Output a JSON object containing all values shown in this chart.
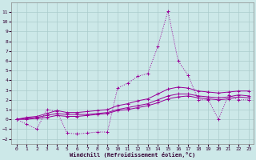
{
  "xlabel": "Windchill (Refroidissement éolien,°C)",
  "background_color": "#cce8e8",
  "grid_color": "#aacccc",
  "line_color": "#990099",
  "xlim": [
    -0.5,
    23.5
  ],
  "ylim": [
    -2.5,
    12
  ],
  "xticks": [
    0,
    1,
    2,
    3,
    4,
    5,
    6,
    7,
    8,
    9,
    10,
    11,
    12,
    13,
    14,
    15,
    16,
    17,
    18,
    19,
    20,
    21,
    22,
    23
  ],
  "yticks": [
    -2,
    -1,
    0,
    1,
    2,
    3,
    4,
    5,
    6,
    7,
    8,
    9,
    10,
    11
  ],
  "series": [
    {
      "x": [
        0,
        1,
        2,
        3,
        4,
        5,
        6,
        7,
        8,
        9,
        10,
        11,
        12,
        13,
        14,
        15,
        16,
        17,
        18,
        19,
        20,
        21,
        22,
        23
      ],
      "y": [
        0,
        -0.5,
        -1.0,
        1.0,
        0.8,
        -1.4,
        -1.5,
        -1.4,
        -1.3,
        -1.3,
        3.2,
        3.7,
        4.4,
        4.7,
        7.5,
        11.1,
        6.0,
        4.5,
        2.0,
        2.0,
        0.0,
        2.5,
        2.0,
        2.0
      ],
      "style": "dotted"
    },
    {
      "x": [
        0,
        1,
        2,
        3,
        4,
        5,
        6,
        7,
        8,
        9,
        10,
        11,
        12,
        13,
        14,
        15,
        16,
        17,
        18,
        19,
        20,
        21,
        22,
        23
      ],
      "y": [
        0,
        0.0,
        0.1,
        0.2,
        0.4,
        0.3,
        0.3,
        0.4,
        0.5,
        0.6,
        0.9,
        1.0,
        1.2,
        1.4,
        1.7,
        2.1,
        2.3,
        2.4,
        2.2,
        2.1,
        2.0,
        2.1,
        2.3,
        2.2
      ],
      "style": "solid"
    },
    {
      "x": [
        0,
        1,
        2,
        3,
        4,
        5,
        6,
        7,
        8,
        9,
        10,
        11,
        12,
        13,
        14,
        15,
        16,
        17,
        18,
        19,
        20,
        21,
        22,
        23
      ],
      "y": [
        0,
        0.1,
        0.2,
        0.4,
        0.6,
        0.5,
        0.5,
        0.5,
        0.6,
        0.7,
        1.0,
        1.2,
        1.4,
        1.6,
        2.0,
        2.4,
        2.6,
        2.6,
        2.4,
        2.3,
        2.2,
        2.3,
        2.5,
        2.4
      ],
      "style": "solid"
    },
    {
      "x": [
        0,
        1,
        2,
        3,
        4,
        5,
        6,
        7,
        8,
        9,
        10,
        11,
        12,
        13,
        14,
        15,
        16,
        17,
        18,
        19,
        20,
        21,
        22,
        23
      ],
      "y": [
        0,
        0.2,
        0.3,
        0.6,
        0.9,
        0.7,
        0.7,
        0.8,
        0.9,
        1.0,
        1.4,
        1.6,
        1.9,
        2.1,
        2.6,
        3.1,
        3.3,
        3.2,
        2.9,
        2.8,
        2.7,
        2.8,
        2.9,
        2.9
      ],
      "style": "solid"
    }
  ]
}
